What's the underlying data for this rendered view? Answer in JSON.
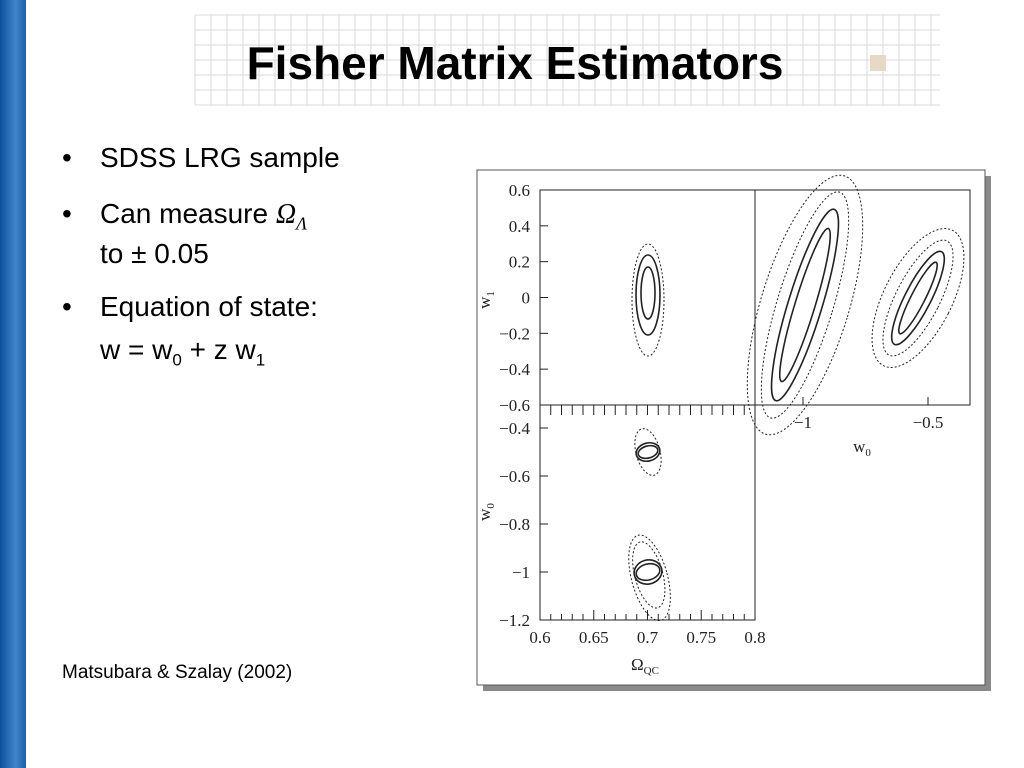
{
  "header": {
    "title": "Fisher Matrix Estimators"
  },
  "bullets": [
    {
      "lines": [
        [
          "SDSS LRG sample"
        ]
      ]
    },
    {
      "lines": [
        [
          "Can measure ",
          "Ω",
          "Λ"
        ],
        [
          "to ± 0.05"
        ]
      ]
    },
    {
      "lines": [
        [
          "Equation of state:"
        ],
        [
          "w = w",
          "0",
          " + z w",
          "1"
        ]
      ]
    }
  ],
  "citation": "Matsubara & Szalay (2002)",
  "figure": {
    "panels": [
      {
        "y_ticks": [
          "0.6",
          "0.4",
          "0.2",
          "0",
          "−0.2",
          "−0.4",
          "−0.6"
        ],
        "y_label": [
          "w",
          "1"
        ]
      },
      {
        "x_ticks": [
          "−1",
          "−0.5"
        ],
        "x_label": [
          "w",
          "0"
        ]
      },
      {
        "y_ticks": [
          "−0.4",
          "−0.6",
          "−0.8",
          "−1",
          "−1.2"
        ],
        "y_label": [
          "w",
          "0"
        ],
        "x_ticks": [
          "0.6",
          "0.65",
          "0.7",
          "0.75",
          "0.8"
        ],
        "x_label": [
          "Ω",
          "QC"
        ]
      }
    ]
  }
}
